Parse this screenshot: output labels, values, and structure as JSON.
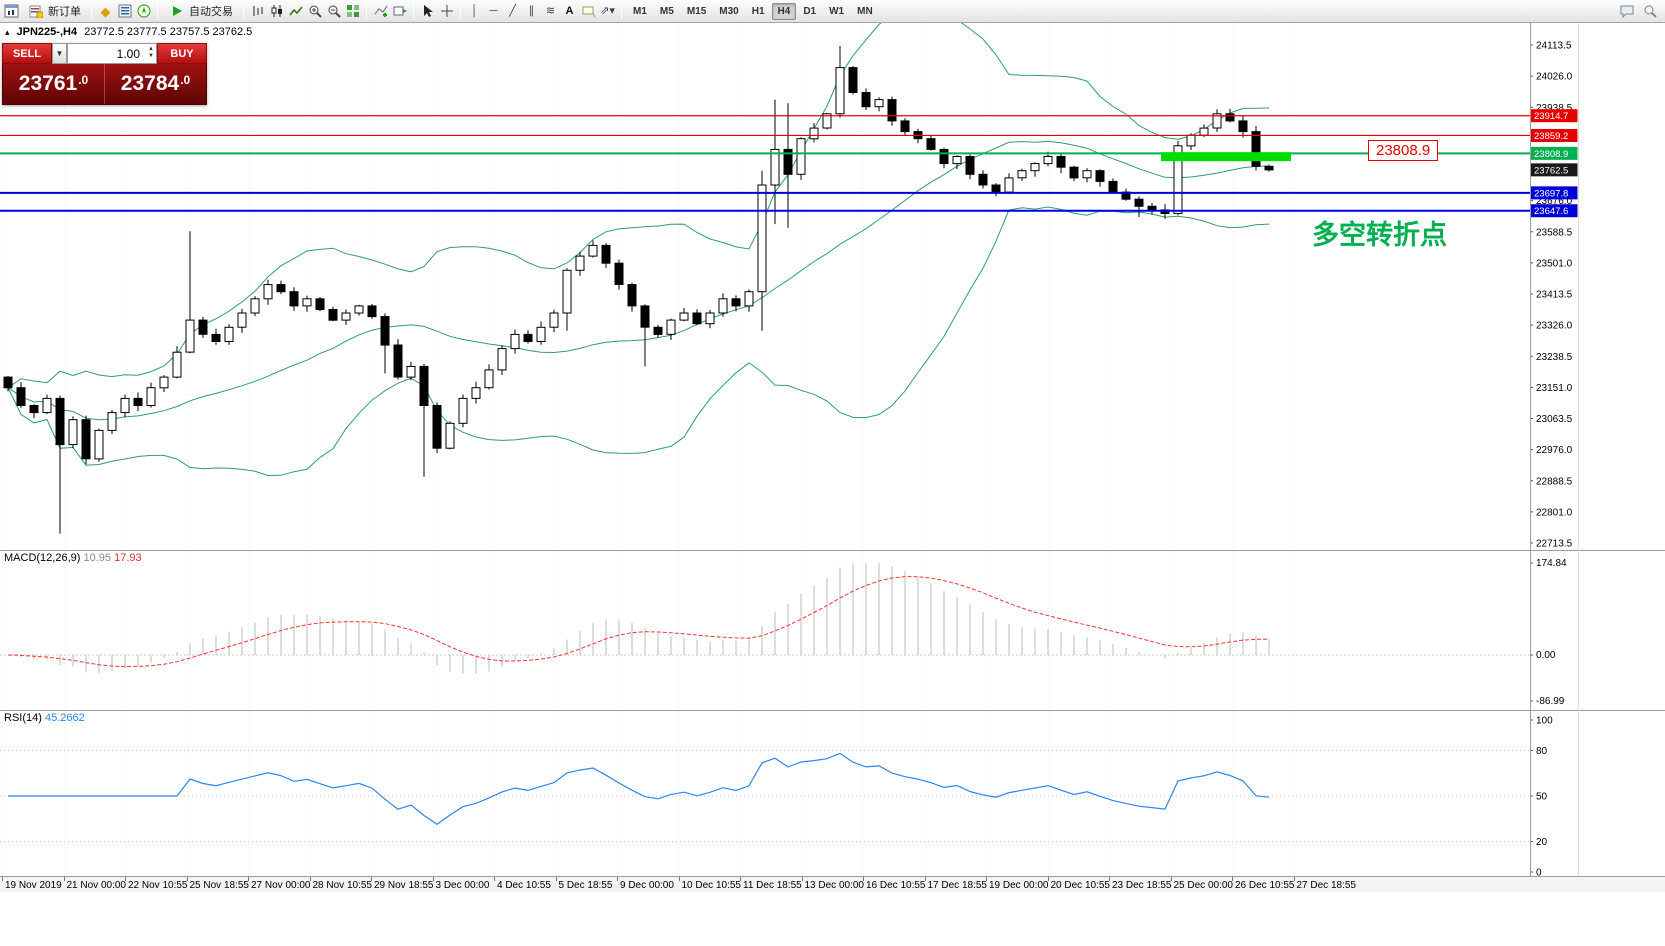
{
  "toolbar": {
    "new_order": "新订单",
    "autotrading": "自动交易",
    "timeframes": [
      "M1",
      "M5",
      "M15",
      "M30",
      "H1",
      "H4",
      "D1",
      "W1",
      "MN"
    ],
    "active_timeframe": "H4"
  },
  "header": {
    "symbol": "JPN225-,H4",
    "ohlc": "23772.5 23777.5 23757.5 23762.5"
  },
  "trade_panel": {
    "sell_label": "SELL",
    "buy_label": "BUY",
    "volume": "1.00",
    "sell_price": {
      "main": "23761",
      "frac": ".0"
    },
    "buy_price": {
      "main": "23784",
      "frac": ".0"
    }
  },
  "annotations": {
    "price_callout": "23808.9",
    "note_cn": "多空转折点"
  },
  "levels": [
    {
      "price": "23914.7",
      "color": "#e60000",
      "width": 1.2
    },
    {
      "price": "23859.2",
      "color": "#e60000",
      "width": 1.2
    },
    {
      "price": "23808.9",
      "color": "#00b050",
      "width": 2
    },
    {
      "price": "23697.8",
      "color": "#0000d8",
      "width": 2
    },
    {
      "price": "23647.6",
      "color": "#0000d8",
      "width": 2
    }
  ],
  "current_price": {
    "value": "23762.5",
    "color": "#1a1a1a"
  },
  "price_axis": {
    "ticks": [
      "24113.5",
      "24026.0",
      "23938.5",
      "23851.0",
      "23763.5",
      "23676.0",
      "23588.5",
      "23501.0",
      "23413.5",
      "23326.0",
      "23238.5",
      "23151.0",
      "23063.5",
      "22976.0",
      "22888.5",
      "22801.0",
      "22713.5"
    ]
  },
  "time_axis": {
    "labels": [
      "19 Nov 2019",
      "21 Nov 00:00",
      "22 Nov 10:55",
      "25 Nov 18:55",
      "27 Nov 00:00",
      "28 Nov 10:55",
      "29 Nov 18:55",
      "3 Dec 00:00",
      "4 Dec 10:55",
      "5 Dec 18:55",
      "9 Dec 00:00",
      "10 Dec 10:55",
      "11 Dec 18:55",
      "13 Dec 00:00",
      "16 Dec 10:55",
      "17 Dec 18:55",
      "19 Dec 00:00",
      "20 Dec 10:55",
      "23 Dec 18:55",
      "25 Dec 00:00",
      "26 Dec 10:55",
      "27 Dec 18:55"
    ]
  },
  "indicators": {
    "macd": {
      "name": "MACD(12,26,9)",
      "value_main": "10.95",
      "value_signal": "17.93",
      "axis": [
        "174.84",
        "0.00",
        "-86.99"
      ]
    },
    "rsi": {
      "name": "RSI(14)",
      "value": "45.2662",
      "axis": [
        "100",
        "80",
        "50",
        "20",
        "0"
      ]
    }
  },
  "colors": {
    "bollinger": "#2f9e68",
    "candle_up": "#ffffff",
    "candle_down": "#000000",
    "candle_outline": "#000000",
    "macd_histogram": "#bbbbbb",
    "macd_signal": "#ff3333",
    "rsi_line": "#2e86e8",
    "highlight_green": "#00dd00"
  },
  "chart_data": {
    "type": "candlestick",
    "symbol": "JPN225-",
    "timeframe": "H4",
    "price_range": {
      "top": 24113.5,
      "bottom": 22713.5
    },
    "last_candle": {
      "open": 23772.5,
      "high": 23777.5,
      "low": 23757.5,
      "close": 23762.5
    },
    "closes": [
      23150,
      23100,
      23080,
      23120,
      22990,
      23060,
      22950,
      23030,
      23080,
      23120,
      23100,
      23150,
      23180,
      23250,
      23340,
      23300,
      23280,
      23320,
      23360,
      23400,
      23440,
      23420,
      23380,
      23400,
      23370,
      23340,
      23360,
      23380,
      23350,
      23270,
      23180,
      23210,
      23100,
      22980,
      23050,
      23120,
      23150,
      23200,
      23260,
      23300,
      23280,
      23320,
      23360,
      23480,
      23520,
      23550,
      23500,
      23440,
      23380,
      23320,
      23300,
      23340,
      23360,
      23330,
      23360,
      23400,
      23380,
      23420,
      23720,
      23820,
      23750,
      23850,
      23880,
      23920,
      24050,
      23980,
      23940,
      23960,
      23900,
      23870,
      23850,
      23820,
      23780,
      23800,
      23750,
      23720,
      23700,
      23740,
      23760,
      23780,
      23800,
      23770,
      23740,
      23760,
      23730,
      23700,
      23680,
      23660,
      23650,
      23640,
      23830,
      23860,
      23880,
      23920,
      23900,
      23870,
      23772.5,
      23762.5
    ],
    "wick_overrides": {
      "4": {
        "low": 22740
      },
      "14": {
        "high": 23590
      },
      "29": {
        "low": 23190
      },
      "32": {
        "low": 22900
      },
      "43": {
        "low": 23310
      },
      "49": {
        "low": 23210
      },
      "58": {
        "high": 23760,
        "low": 23310
      },
      "59": {
        "high": 23960,
        "low": 23610
      },
      "60": {
        "high": 23950,
        "low": 23600
      },
      "64": {
        "high": 24111
      },
      "87": {
        "low": 23630
      },
      "89": {
        "low": 23625
      },
      "93": {
        "high": 23933
      }
    },
    "highlight": {
      "price": 23812,
      "from_candle": 89,
      "to_candle": 99,
      "color": "#00dd00"
    },
    "overlays": [
      "Bollinger Bands(20,2)"
    ],
    "panels": [
      "MACD(12,26,9)",
      "RSI(14)"
    ]
  }
}
